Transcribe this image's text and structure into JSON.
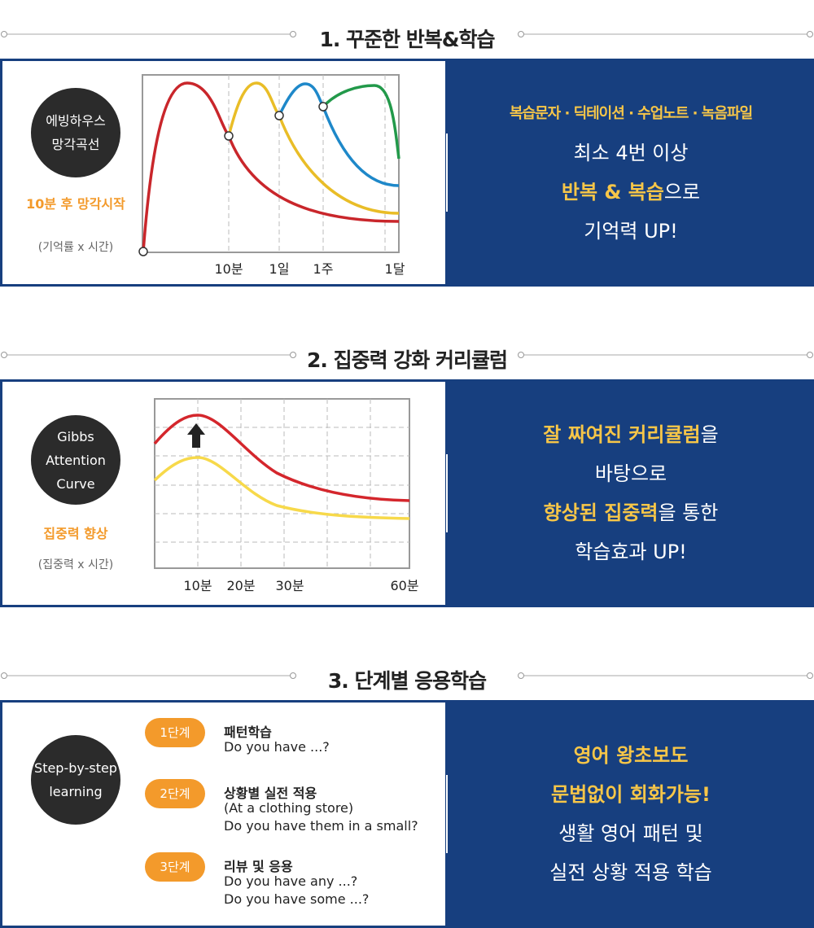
{
  "sections": [
    {
      "title": "1. 꾸준한 반복&학습",
      "badge": [
        "에빙하우스",
        "망각곡선"
      ],
      "highlight": "10분 후 망각시작",
      "note": "(기억률 x 시간)",
      "x_labels": [
        "10분",
        "1일",
        "1주",
        "1달"
      ],
      "right_subtitle": "복습문자 · 딕테이션 · 수업노트 · 녹음파일",
      "right_lines": [
        [
          {
            "text": "최소 4번 이상"
          }
        ],
        [
          {
            "text": "반복 & 복습",
            "highlight": true
          },
          {
            "text": "으로"
          }
        ],
        [
          {
            "text": "기억력 UP!"
          }
        ]
      ]
    },
    {
      "title": "2. 집중력 강화 커리큘럼",
      "badge": [
        "Gibbs",
        "Attention",
        "Curve"
      ],
      "highlight": "집중력 향상",
      "note": "(집중력 x 시간)",
      "x_labels": [
        "10분",
        "20분",
        "30분",
        "60분"
      ],
      "right_lines": [
        [
          {
            "text": "잘 짜여진 커리큘럼",
            "highlight": true
          },
          {
            "text": "을"
          }
        ],
        [
          {
            "text": "바탕으로"
          }
        ],
        [
          {
            "text": "향상된 집중력",
            "highlight": true
          },
          {
            "text": "을 통한"
          }
        ],
        [
          {
            "text": "학습효과 UP!"
          }
        ]
      ]
    },
    {
      "title": "3. 단계별 응용학습",
      "badge": [
        "Step-by-step",
        "learning"
      ],
      "steps": [
        {
          "badge": "1단계",
          "title": "패턴학습",
          "lines": [
            "Do you have ...?"
          ]
        },
        {
          "badge": "2단계",
          "title": "상황별 실전 적용",
          "lines": [
            "(At a clothing store)",
            "Do you have them in a small?"
          ]
        },
        {
          "badge": "3단계",
          "title": "리뷰 및 응용",
          "lines": [
            "Do you have any ...?",
            "Do you have some ...?"
          ]
        }
      ],
      "right_lines": [
        [
          {
            "text": "영어 왕초보도",
            "highlight": true
          }
        ],
        [
          {
            "text": "문법없이 회화가능!",
            "highlight": true
          }
        ],
        [
          {
            "text": "생활 영어 패턴 및"
          }
        ],
        [
          {
            "text": "실전 상황 적용 학습"
          }
        ]
      ]
    }
  ]
}
